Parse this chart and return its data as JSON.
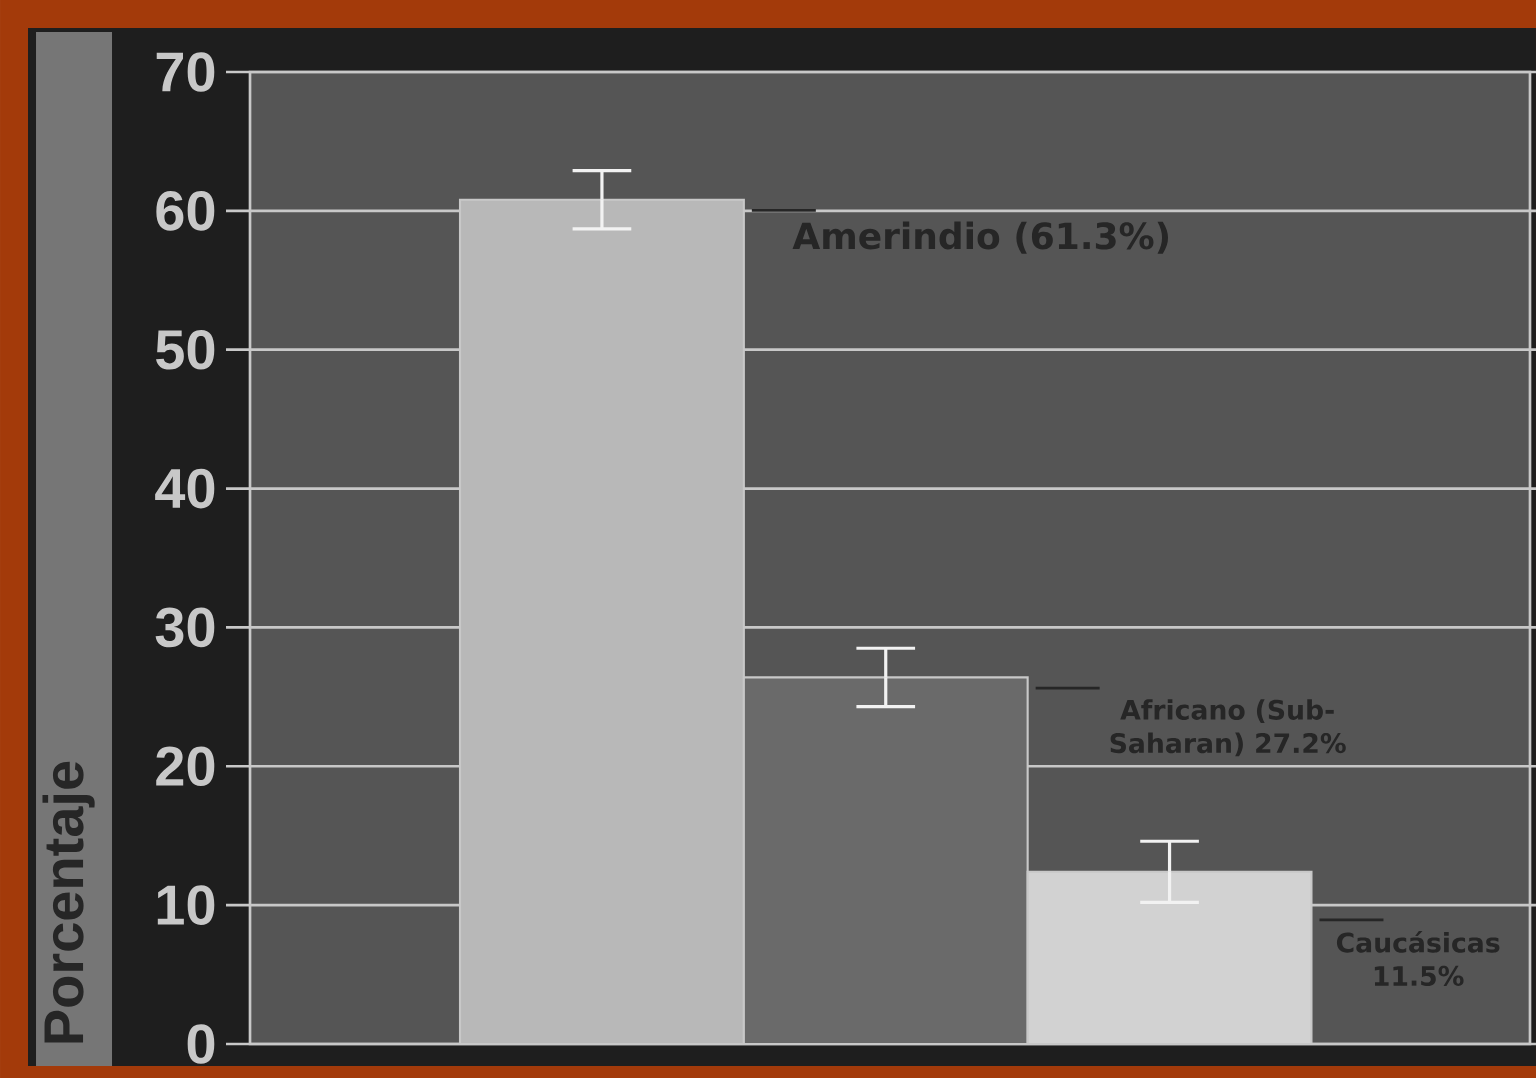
{
  "chart_data": {
    "type": "bar",
    "ylabel": "Porcentaje",
    "categories": [
      null,
      null,
      null
    ],
    "values": [
      60.8,
      26.4,
      12.4
    ],
    "colors": [
      "#b8b8b8",
      "#6a6a6a",
      "#d2d2d2"
    ],
    "errors": [
      [
        58.7,
        62.9
      ],
      [
        24.3,
        28.5
      ],
      [
        10.2,
        14.6
      ]
    ],
    "ylim": [
      0,
      70
    ],
    "yticks": [
      0,
      10,
      20,
      30,
      40,
      50,
      60,
      70
    ],
    "grid": "y",
    "tick_labels": "y",
    "annotations": [
      "Amerindio (61.3%)",
      "Africano (Sub-Saharan) 27.2%",
      "Caucásicas 11.5%"
    ]
  }
}
